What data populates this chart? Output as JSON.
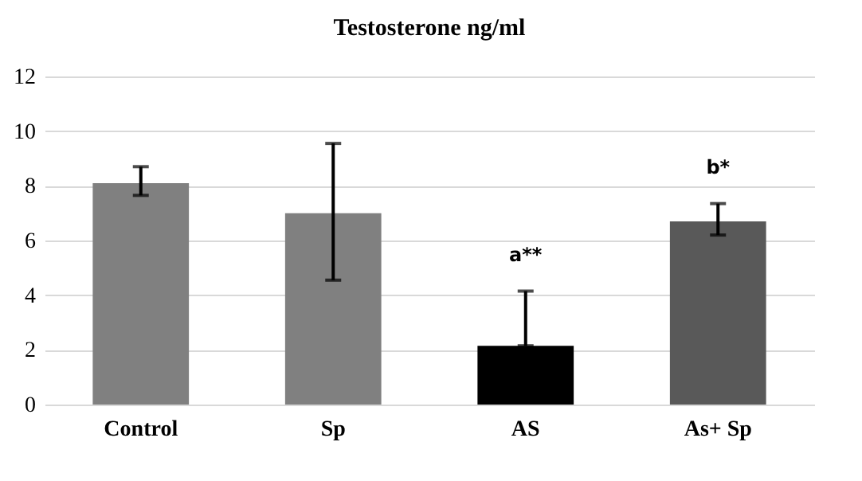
{
  "chart_data": {
    "type": "bar",
    "title": "Testosterone ng/ml",
    "categories": [
      "Control",
      "Sp",
      "AS",
      "As+ Sp"
    ],
    "values": [
      8.1,
      7.0,
      2.15,
      6.7
    ],
    "colors": [
      "#808080",
      "#808080",
      "#000000",
      "#595959"
    ],
    "errors": [
      [
        7.65,
        8.7
      ],
      [
        4.55,
        9.55
      ],
      [
        2.15,
        4.15
      ],
      [
        6.2,
        7.35
      ]
    ],
    "ylim": [
      0,
      12
    ],
    "yticks": [
      0,
      2,
      4,
      6,
      8,
      10,
      12
    ],
    "grid": "y",
    "annotations": [
      {
        "text": "a**",
        "x": "AS",
        "y": 4.15
      },
      {
        "text": "b*",
        "x": "As+ Sp",
        "y": 7.35
      }
    ]
  }
}
